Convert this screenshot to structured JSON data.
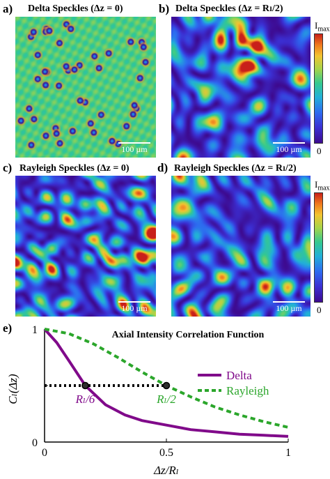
{
  "panels": [
    {
      "label": "a)",
      "title": "Delta Speckles (Δz = 0)",
      "scale": "100 µm",
      "kind": "delta"
    },
    {
      "label": "b)",
      "title": "Delta Speckles (Δz = Rₗ/2)",
      "scale": "100 µm",
      "kind": "speckle"
    },
    {
      "label": "c)",
      "title": "Rayleigh Speckles (Δz = 0)",
      "scale": "100 µm",
      "kind": "speckle"
    },
    {
      "label": "d)",
      "title": "Rayleigh Speckles (Δz = Rₗ/2)",
      "scale": "100 µm",
      "kind": "speckle"
    }
  ],
  "colorbars": [
    {
      "top_label": "I",
      "top_sub": "max",
      "bottom_label": "0"
    },
    {
      "top_label": "I",
      "top_sub": "max",
      "bottom_label": "0"
    }
  ],
  "colors": {
    "delta": "#800a8a",
    "rayleigh": "#2ba62b"
  },
  "chart_data": {
    "type": "line",
    "panel_label": "e)",
    "title": "Axial Intensity Correlation Function",
    "xlabel": "Δz/Rₗ",
    "ylabel": "Cₗ(Δz)",
    "xlim": [
      0,
      1
    ],
    "ylim": [
      0,
      1
    ],
    "xticks": [
      "0",
      "0.5",
      "1"
    ],
    "yticks": [
      "0",
      "0.5",
      "1"
    ],
    "grid": false,
    "legend": "right",
    "series": [
      {
        "name": "Delta",
        "style": "solid",
        "x": [
          0,
          0.05,
          0.1,
          0.167,
          0.25,
          0.33,
          0.4,
          0.5,
          0.6,
          0.7,
          0.8,
          0.9,
          1.0
        ],
        "y": [
          1.0,
          0.88,
          0.72,
          0.5,
          0.33,
          0.24,
          0.19,
          0.15,
          0.11,
          0.09,
          0.07,
          0.06,
          0.05
        ]
      },
      {
        "name": "Rayleigh",
        "style": "dashed",
        "x": [
          0,
          0.1,
          0.2,
          0.3,
          0.4,
          0.5,
          0.6,
          0.7,
          0.8,
          0.9,
          1.0
        ],
        "y": [
          1.0,
          0.96,
          0.87,
          0.75,
          0.62,
          0.5,
          0.4,
          0.31,
          0.24,
          0.18,
          0.13
        ]
      }
    ],
    "reference_line": {
      "y": 0.5,
      "x_from": 0,
      "x_to": 0.5
    },
    "markers": [
      {
        "x": 0.167,
        "y": 0.5,
        "label": "Rₗ/6"
      },
      {
        "x": 0.5,
        "y": 0.5,
        "label": "Rₗ/2"
      }
    ]
  }
}
